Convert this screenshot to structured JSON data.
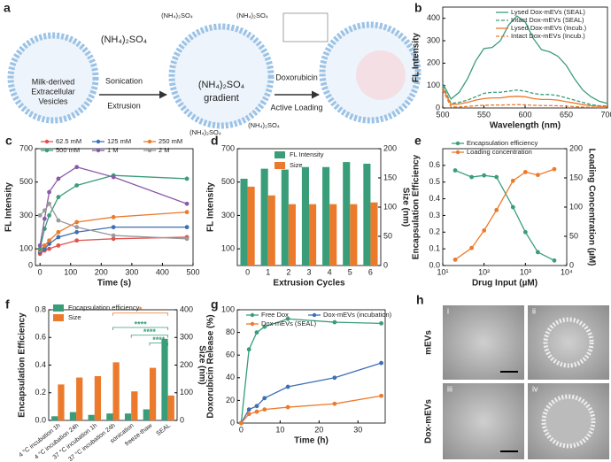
{
  "schematic": {
    "panel": "a",
    "labels": [
      "(NH₄)₂SO₄",
      "Sonication",
      "Extrusion",
      "Milk-derived",
      "Extracellular",
      "Vesicles",
      "(NH₄)₂SO₄",
      "gradient",
      "Doxorubicin",
      "Active Loading",
      "(NH₄)₂SO₄",
      "(NH₄)₂SO₄",
      "(NH₄)₂SO₄",
      "(NH₄)₂SO₄"
    ]
  },
  "micrographs": {
    "panel": "h",
    "rows": [
      "mEVs",
      "Dox-mEVs"
    ],
    "insets": [
      "i",
      "ii",
      "iii",
      "iv"
    ]
  },
  "chart_data": [
    {
      "panel": "b",
      "type": "line",
      "xlabel": "Wavelength (nm)",
      "ylabel": "FL Intensity",
      "x": [
        500,
        510,
        520,
        530,
        540,
        550,
        560,
        570,
        580,
        590,
        600,
        610,
        620,
        630,
        640,
        650,
        660,
        670,
        680,
        690,
        700
      ],
      "xlim": [
        500,
        700
      ],
      "xticks": [
        500,
        550,
        600,
        650,
        700
      ],
      "ylim": [
        0,
        450
      ],
      "yticks": [
        0,
        100,
        200,
        300,
        400
      ],
      "legend": "top-right",
      "series": [
        {
          "name": "Lysed Dox-mEVs (SEAL)",
          "color": "#3a9d79",
          "dash": false,
          "values": [
            110,
            40,
            70,
            130,
            210,
            265,
            270,
            300,
            370,
            410,
            385,
            310,
            260,
            250,
            230,
            190,
            130,
            80,
            50,
            30,
            20
          ]
        },
        {
          "name": "Intact Dox-mEVs (SEAL)",
          "color": "#3a9d79",
          "dash": true,
          "values": [
            100,
            20,
            25,
            35,
            50,
            65,
            70,
            70,
            75,
            80,
            75,
            65,
            60,
            60,
            55,
            45,
            35,
            25,
            15,
            10,
            8
          ]
        },
        {
          "name": "Lysed Dox-mEVs (Incub.)",
          "color": "#ec7a2c",
          "dash": false,
          "values": [
            90,
            15,
            18,
            25,
            35,
            42,
            45,
            45,
            50,
            52,
            50,
            42,
            38,
            38,
            35,
            28,
            22,
            15,
            10,
            7,
            5
          ]
        },
        {
          "name": "Intact Dox-mEVs (Incub.)",
          "color": "#ec7a2c",
          "dash": true,
          "values": [
            80,
            5,
            5,
            7,
            10,
            12,
            13,
            13,
            14,
            15,
            14,
            12,
            11,
            11,
            10,
            8,
            6,
            4,
            3,
            2,
            2
          ]
        }
      ]
    },
    {
      "panel": "c",
      "type": "line",
      "markers": true,
      "xlabel": "Time (s)",
      "ylabel": "FL Intensity",
      "x": [
        0,
        15,
        30,
        60,
        120,
        240,
        480
      ],
      "xlim": [
        -15,
        500
      ],
      "xticks": [
        0,
        100,
        200,
        300,
        400,
        500
      ],
      "ylim": [
        0,
        700
      ],
      "yticks": [
        0,
        100,
        300,
        500,
        700
      ],
      "legend": "top",
      "series": [
        {
          "name": "62.5 mM",
          "color": "#e0524f",
          "values": [
            70,
            90,
            100,
            120,
            150,
            160,
            170
          ]
        },
        {
          "name": "125 mM",
          "color": "#3e6fb5",
          "values": [
            80,
            100,
            130,
            170,
            200,
            230,
            230
          ]
        },
        {
          "name": "250 mM",
          "color": "#ec7a2c",
          "values": [
            90,
            120,
            150,
            200,
            260,
            290,
            320
          ]
        },
        {
          "name": "500 mM",
          "color": "#3a9d79",
          "values": [
            100,
            220,
            300,
            410,
            480,
            540,
            520
          ]
        },
        {
          "name": "1 M",
          "color": "#8a5aa8",
          "values": [
            120,
            280,
            440,
            520,
            590,
            530,
            370
          ]
        },
        {
          "name": "2 M",
          "color": "#9a9a9a",
          "values": [
            300,
            330,
            370,
            270,
            230,
            180,
            160
          ]
        }
      ]
    },
    {
      "panel": "d",
      "type": "bar",
      "xlabel": "Extrusion Cycles",
      "ylabel": "FL Intensity",
      "y2label": "Size (nm)",
      "categories": [
        "0",
        "1",
        "2",
        "3",
        "4",
        "5",
        "6"
      ],
      "ylim": [
        0,
        700
      ],
      "yticks": [
        100,
        300,
        500,
        700
      ],
      "y2lim": [
        0,
        200
      ],
      "y2ticks": [
        0,
        50,
        100,
        150,
        200
      ],
      "legend": "top-left",
      "series": [
        {
          "name": "FL Intensity",
          "color": "#3a9d79",
          "values": [
            520,
            580,
            575,
            590,
            590,
            620,
            610
          ]
        },
        {
          "name": "Size",
          "color": "#ec7a2c",
          "axis": "y2",
          "values": [
            135,
            120,
            105,
            105,
            105,
            105,
            108
          ]
        }
      ]
    },
    {
      "panel": "e",
      "type": "line",
      "markers": true,
      "xscale": "log",
      "xlabel": "Drug Input (µM)",
      "ylabel": "Encapsulation Efficiency",
      "y2label": "Loading Concentration (µM)",
      "x": [
        20,
        50,
        100,
        200,
        500,
        1000,
        2000,
        5000
      ],
      "xlim": [
        10,
        10000
      ],
      "xticks": [
        {
          "value": 10,
          "label": "10¹"
        },
        {
          "value": 100,
          "label": "10²"
        },
        {
          "value": 1000,
          "label": "10³"
        },
        {
          "value": 10000,
          "label": "10⁴"
        }
      ],
      "ylim": [
        0,
        0.7
      ],
      "yticks": [
        {
          "value": 0,
          "label": "0.0"
        },
        0.1,
        0.2,
        0.3,
        0.4,
        0.5,
        0.6
      ],
      "y2lim": [
        0,
        200
      ],
      "y2ticks": [
        0,
        50,
        100,
        150,
        200
      ],
      "legend": "top",
      "series": [
        {
          "name": "Encapsulation efficiency",
          "color": "#3a9d79",
          "values": [
            0.57,
            0.53,
            0.54,
            0.53,
            0.35,
            0.2,
            0.08,
            0.03
          ]
        },
        {
          "name": "Loading concentration",
          "color": "#ec7a2c",
          "axis": "y2",
          "values": [
            10,
            30,
            60,
            95,
            145,
            160,
            155,
            165
          ]
        }
      ]
    },
    {
      "panel": "f",
      "type": "bar",
      "ylabel": "Encapsulation Efficiency",
      "y2label": "Size (nm)",
      "categories": [
        "4 °C incubation 1h",
        "4 °C incubation 24h",
        "37 °C incubation 1h",
        "37 °C incubation 24h",
        "sonication",
        "freeze-thaw",
        "SEAL"
      ],
      "ylim": [
        0,
        0.8
      ],
      "yticks": [
        {
          "value": 0,
          "label": "0.0"
        },
        0.2,
        0.4,
        0.6,
        0.8
      ],
      "y2lim": [
        0,
        400
      ],
      "y2ticks": [
        0,
        100,
        200,
        300,
        400
      ],
      "legend": "top-left",
      "annotations": [
        "*",
        "****",
        "****",
        "****"
      ],
      "series": [
        {
          "name": "Encapsulation efficiency",
          "color": "#3a9d79",
          "values": [
            0.03,
            0.06,
            0.04,
            0.05,
            0.05,
            0.08,
            0.59
          ]
        },
        {
          "name": "Size",
          "color": "#ec7a2c",
          "axis": "y2",
          "values": [
            130,
            155,
            160,
            210,
            105,
            190,
            90
          ]
        }
      ]
    },
    {
      "panel": "g",
      "type": "line",
      "markers": true,
      "xlabel": "Time (h)",
      "ylabel": "Doxorubicin Release (%)",
      "x": [
        0,
        2,
        4,
        6,
        12,
        24,
        36
      ],
      "xlim": [
        -1,
        37
      ],
      "xticks": [
        0,
        10,
        20,
        30
      ],
      "ylim": [
        0,
        100
      ],
      "yticks": [
        0,
        20,
        40,
        60,
        80,
        100
      ],
      "legend": "top",
      "series": [
        {
          "name": "Free Dox",
          "color": "#3a9d79",
          "values": [
            0,
            65,
            80,
            85,
            92,
            89,
            88
          ]
        },
        {
          "name": "Dox-mEVs (incubation)",
          "color": "#3e6fb5",
          "values": [
            0,
            12,
            15,
            22,
            32,
            40,
            53
          ]
        },
        {
          "name": "Dox-mEVs (SEAL)",
          "color": "#ec7a2c",
          "values": [
            0,
            8,
            10,
            12,
            14,
            17,
            24
          ]
        }
      ]
    }
  ]
}
